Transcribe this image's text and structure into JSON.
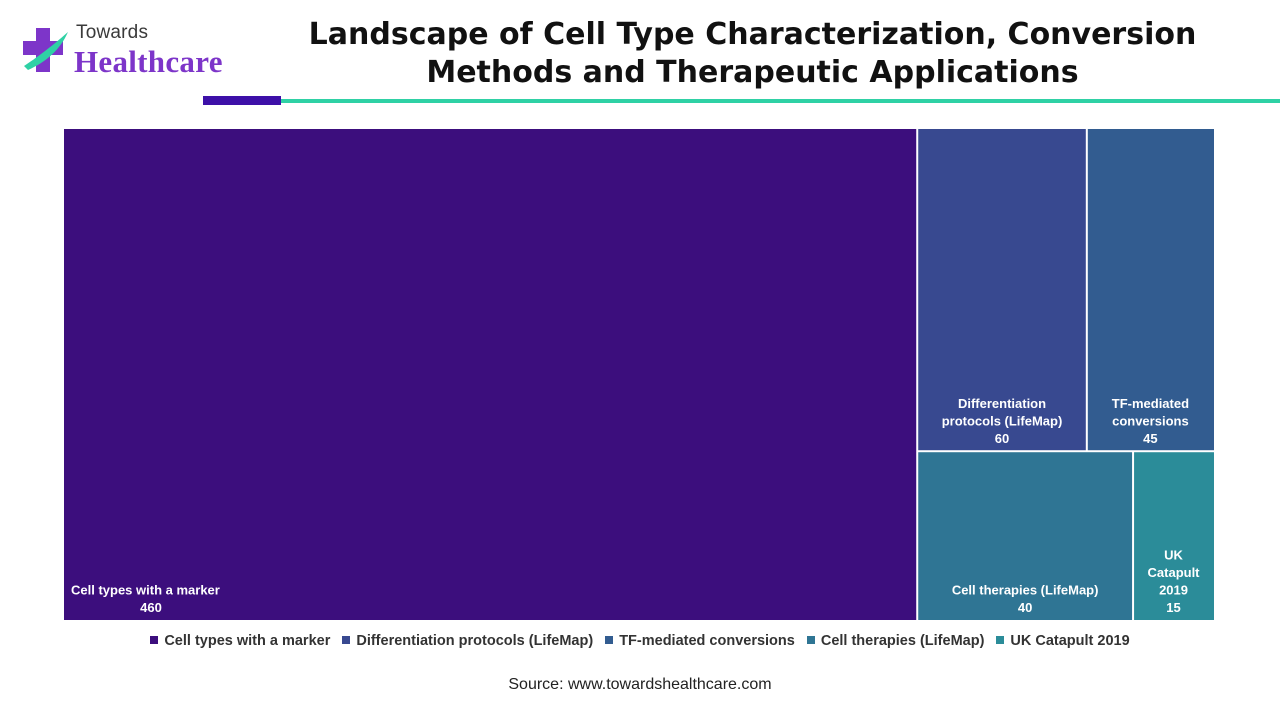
{
  "logo": {
    "top_text": "Towards",
    "bottom_text": "Healthcare",
    "icon": "medical-cross-icon",
    "colors": {
      "cross": "#7d35c9",
      "swoosh": "#2fd1a5",
      "accent": "#3d10a8"
    }
  },
  "title": "Landscape of Cell Type Characterization, Conversion Methods and Therapeutic Applications",
  "source": "Source: www.towardshealthcare.com",
  "chart_data": {
    "type": "treemap",
    "title": "Landscape of Cell Type Characterization, Conversion Methods and Therapeutic Applications",
    "legend_position": "bottom",
    "items": [
      {
        "name": "Cell types with a marker",
        "value": 460,
        "color": "#3c0e7d"
      },
      {
        "name": "Differentiation protocols (LifeMap)",
        "value": 60,
        "color": "#384990"
      },
      {
        "name": "TF-mediated conversions",
        "value": 45,
        "color": "#325c90"
      },
      {
        "name": "Cell therapies (LifeMap)",
        "value": 40,
        "color": "#2f7594"
      },
      {
        "name": "UK Catapult 2019",
        "value": 15,
        "color": "#2b8c99"
      }
    ]
  }
}
